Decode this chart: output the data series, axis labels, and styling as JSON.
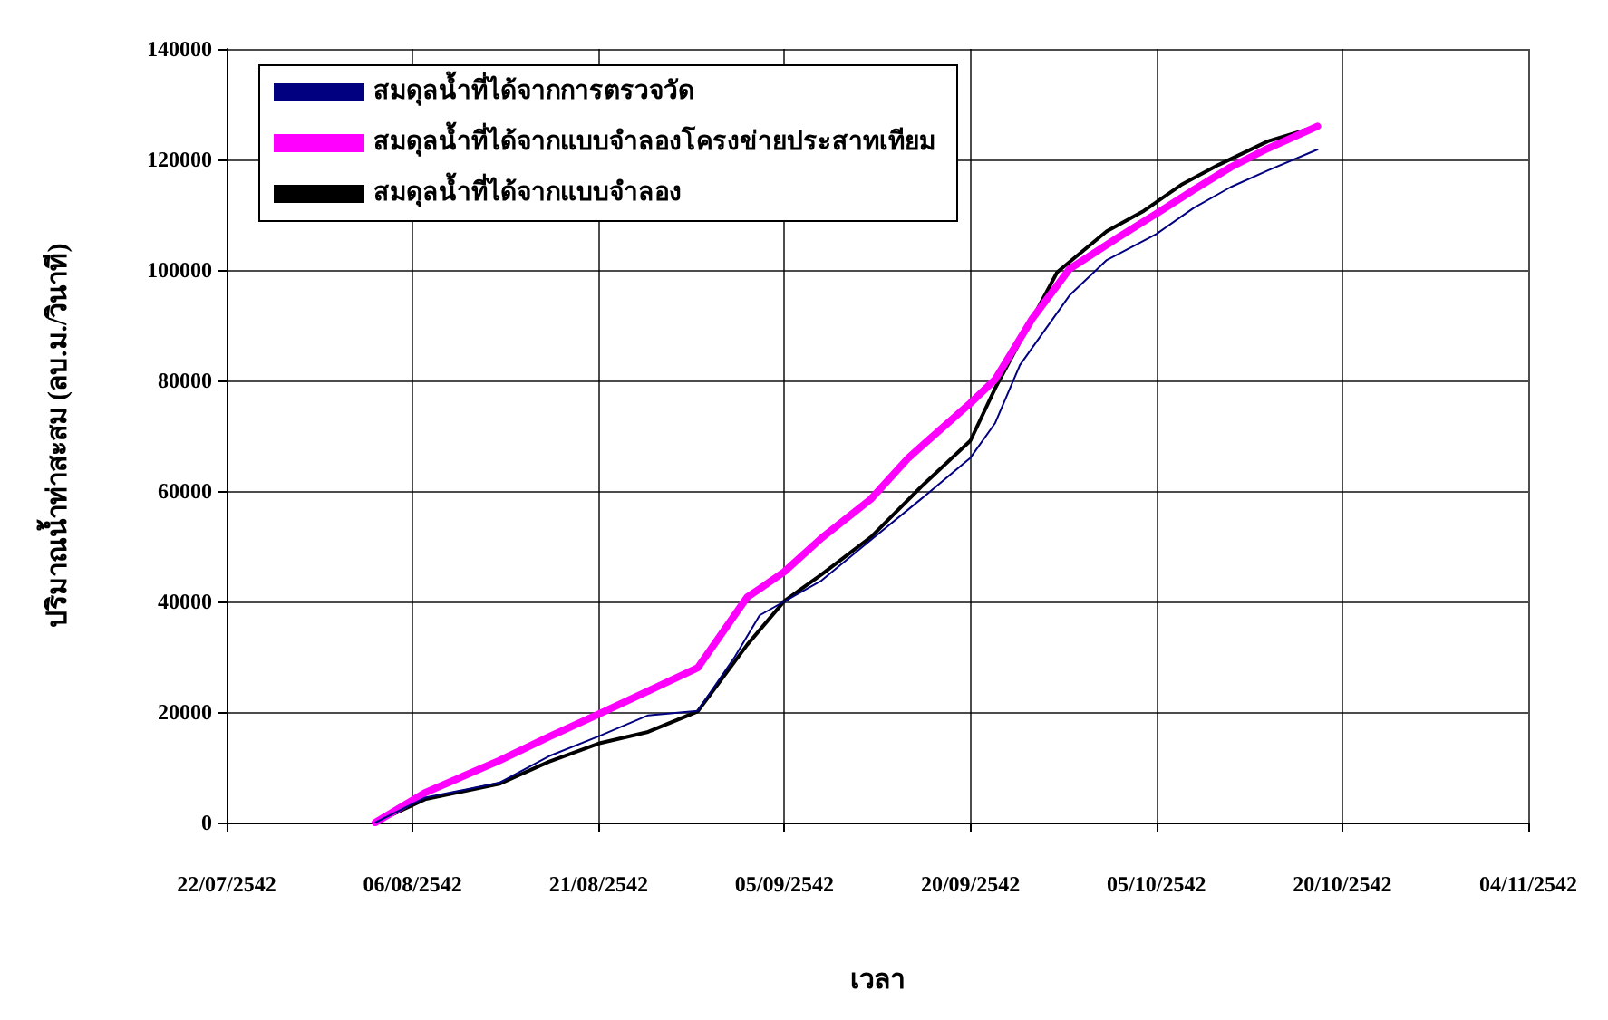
{
  "chart_data": {
    "type": "line",
    "xlabel": "เวลา",
    "ylabel": "ปริมาณน้ำท่าสะสม (ลบ.ม./วินาที)",
    "xlim": [
      "2542-07-22",
      "2542-11-04"
    ],
    "xticks": [
      {
        "value": "2542-07-22",
        "label": "22/07/2542"
      },
      {
        "value": "2542-08-06",
        "label": "06/08/2542"
      },
      {
        "value": "2542-08-21",
        "label": "21/08/2542"
      },
      {
        "value": "2542-09-05",
        "label": "05/09/2542"
      },
      {
        "value": "2542-09-20",
        "label": "20/09/2542"
      },
      {
        "value": "2542-10-05",
        "label": "05/10/2542"
      },
      {
        "value": "2542-10-20",
        "label": "20/10/2542"
      },
      {
        "value": "2542-11-04",
        "label": "04/11/2542"
      }
    ],
    "ylim": [
      0,
      140000
    ],
    "yticks": [
      0,
      20000,
      40000,
      60000,
      80000,
      100000,
      120000,
      140000
    ],
    "grid": true,
    "legend": "top left",
    "marker": "none",
    "line_style": "solid",
    "series": [
      {
        "name": "สมดุลน้ำที่ได้จากการตรวจวัด",
        "color": "#000080",
        "x": [
          "2542-08-03",
          "2542-08-07",
          "2542-08-13",
          "2542-08-17",
          "2542-08-21",
          "2542-08-25",
          "2542-08-29",
          "2542-09-01",
          "2542-09-03",
          "2542-09-08",
          "2542-09-12",
          "2542-09-16",
          "2542-09-20",
          "2542-09-22",
          "2542-09-24",
          "2542-09-28",
          "2542-10-01",
          "2542-10-05",
          "2542-10-08",
          "2542-10-11",
          "2542-10-14",
          "2542-10-18"
        ],
        "values": [
          0,
          4500,
          7200,
          12000,
          15600,
          19400,
          20200,
          30000,
          37500,
          43800,
          51200,
          58500,
          66000,
          72300,
          82800,
          95400,
          101800,
          106500,
          111200,
          115000,
          118000,
          121800
        ]
      },
      {
        "name": "สมดุลน้ำที่ได้จากแบบจำลองโครงข่ายประสาทเทียม",
        "color": "#ff00ff",
        "x": [
          "2542-08-03",
          "2542-08-07",
          "2542-08-13",
          "2542-08-17",
          "2542-08-21",
          "2542-08-25",
          "2542-08-29",
          "2542-09-02",
          "2542-09-03",
          "2542-09-05",
          "2542-09-08",
          "2542-09-12",
          "2542-09-15",
          "2542-09-20",
          "2542-09-22",
          "2542-09-25",
          "2542-09-28",
          "2542-10-02",
          "2542-10-05",
          "2542-10-08",
          "2542-10-11",
          "2542-10-14",
          "2542-10-18"
        ],
        "values": [
          0,
          5400,
          11200,
          15500,
          19600,
          23800,
          28000,
          40800,
          42300,
          45400,
          51500,
          58600,
          66000,
          75900,
          80200,
          91200,
          100200,
          106000,
          110200,
          114500,
          118600,
          122000,
          126000
        ]
      },
      {
        "name": "สมดุลน้ำที่ได้จากแบบจำลอง",
        "color": "#000000",
        "x": [
          "2542-08-03",
          "2542-08-07",
          "2542-08-13",
          "2542-08-17",
          "2542-08-21",
          "2542-08-25",
          "2542-08-29",
          "2542-09-02",
          "2542-09-05",
          "2542-09-08",
          "2542-09-12",
          "2542-09-16",
          "2542-09-20",
          "2542-09-22",
          "2542-09-24",
          "2542-09-27",
          "2542-10-01",
          "2542-10-04",
          "2542-10-07",
          "2542-10-10",
          "2542-10-14",
          "2542-10-18"
        ],
        "values": [
          0,
          4200,
          7000,
          11000,
          14300,
          16400,
          20100,
          32200,
          40100,
          44900,
          51700,
          60700,
          69100,
          78600,
          87000,
          99600,
          107000,
          110700,
          115400,
          119000,
          123300,
          126000
        ]
      }
    ]
  }
}
